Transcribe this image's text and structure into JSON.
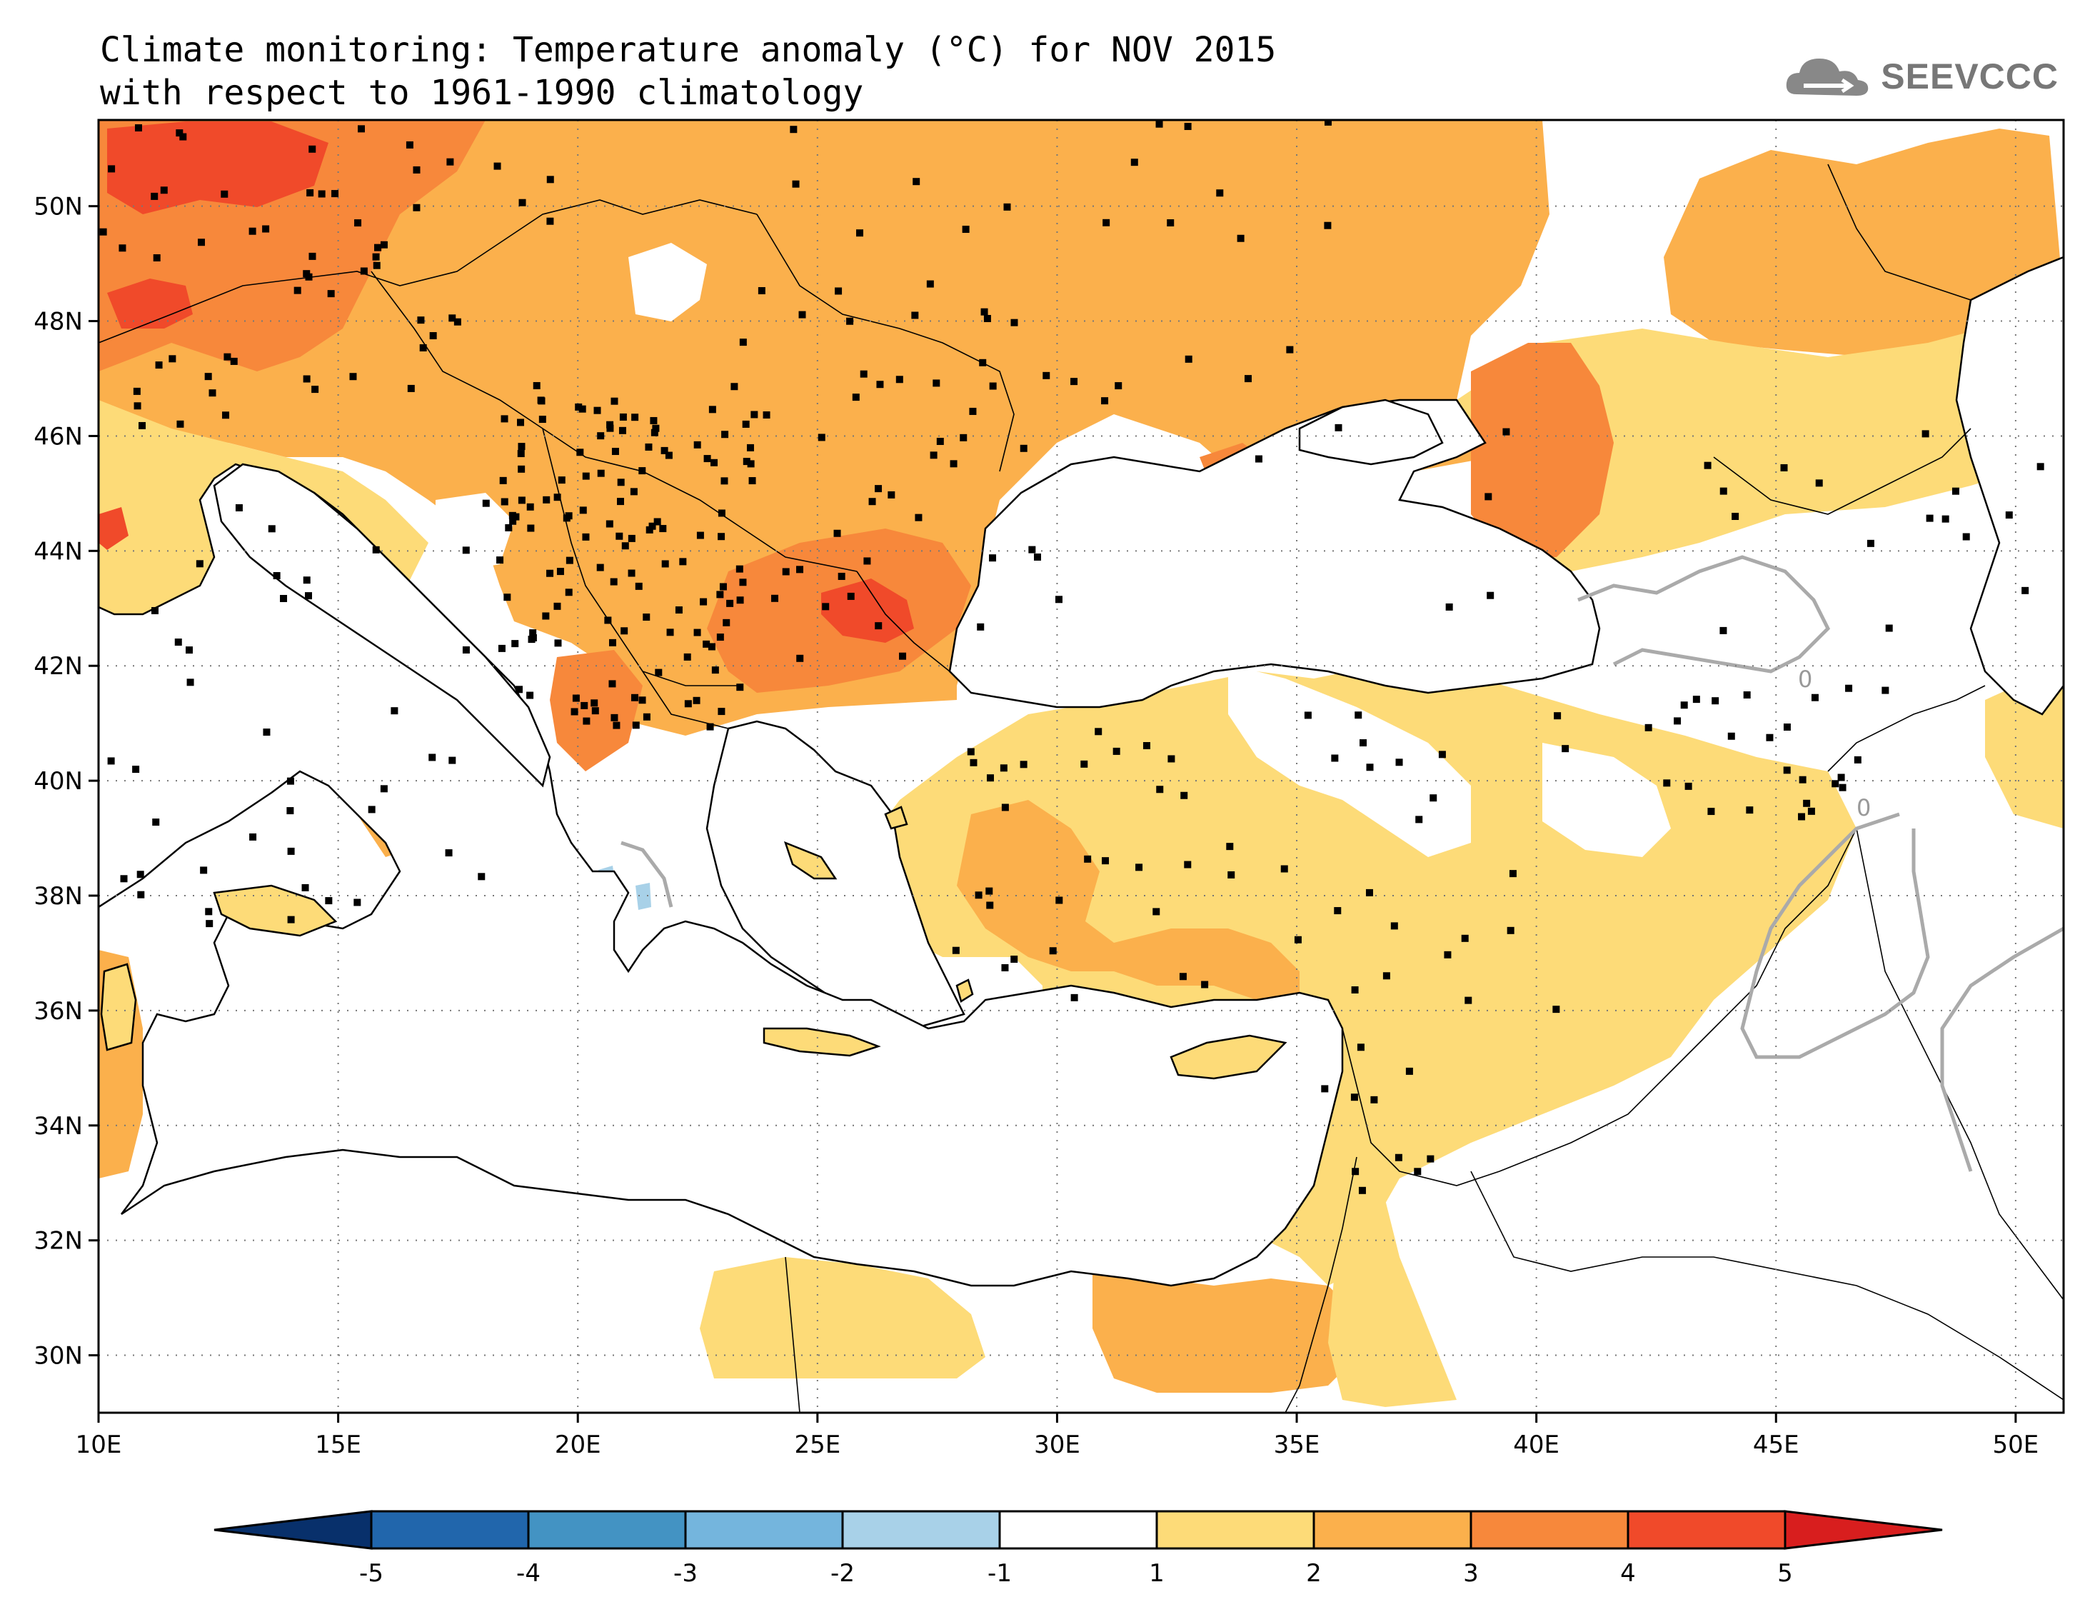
{
  "title": {
    "line1": "Climate monitoring: Temperature anomaly (°C) for NOV 2015",
    "line2": "with respect to 1961-1990 climatology"
  },
  "logo": {
    "text": "SEEVCCC",
    "icon": "cloud-icon"
  },
  "map": {
    "lon_range": [
      10,
      51
    ],
    "lat_range": [
      29,
      51.5
    ],
    "lon_ticks": [
      "10E",
      "15E",
      "20E",
      "25E",
      "30E",
      "35E",
      "40E",
      "45E",
      "50E"
    ],
    "lat_ticks": [
      "50N",
      "48N",
      "46N",
      "44N",
      "42N",
      "40N",
      "38N",
      "36N",
      "34N",
      "32N",
      "30N"
    ],
    "contour_label": "0",
    "station_marker": "black-square"
  },
  "colorbar": {
    "ticks": [
      "-5",
      "-4",
      "-3",
      "-2",
      "-1",
      "1",
      "2",
      "3",
      "4",
      "5"
    ],
    "colors": [
      "#08306b",
      "#2166ac",
      "#4393c3",
      "#74b5dd",
      "#a8d1e8",
      "#ffffff",
      "#fddb78",
      "#fbb04c",
      "#f7883b",
      "#f04a2a",
      "#d81e1e"
    ]
  }
}
